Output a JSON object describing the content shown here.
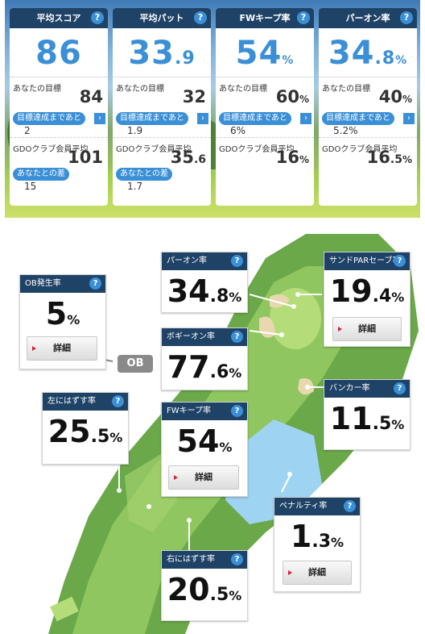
{
  "summary": {
    "cards": [
      {
        "title": "平均スコア",
        "value": "86",
        "dec": "",
        "unit": "",
        "goal_label": "あなたの目標",
        "goal": "84",
        "goal_dec": "",
        "goal_unit": "",
        "to_goal_label": "目標達成まであと",
        "to_goal": "2",
        "avg_label": "GDOクラブ会員平均",
        "avg": "101",
        "avg_dec": "",
        "avg_unit": "",
        "diff_label": "あなたとの差",
        "diff": "15"
      },
      {
        "title": "平均パット",
        "value": "33",
        "dec": ".9",
        "unit": "",
        "goal_label": "あなたの目標",
        "goal": "32",
        "goal_dec": "",
        "goal_unit": "",
        "to_goal_label": "目標達成まであと",
        "to_goal": "1.9",
        "avg_label": "GDOクラブ会員平均",
        "avg": "35",
        "avg_dec": ".6",
        "avg_unit": "",
        "diff_label": "あなたとの差",
        "diff": "1.7"
      },
      {
        "title": "FWキープ率",
        "value": "54",
        "dec": "",
        "unit": "%",
        "goal_label": "あなたの目標",
        "goal": "60",
        "goal_dec": "",
        "goal_unit": "%",
        "to_goal_label": "目標達成まであと",
        "to_goal": "6%",
        "avg_label": "GDOクラブ会員平均",
        "avg": "16",
        "avg_dec": "",
        "avg_unit": "%",
        "diff_label": "",
        "diff": ""
      },
      {
        "title": "パーオン率",
        "value": "34",
        "dec": ".8",
        "unit": "%",
        "goal_label": "あなたの目標",
        "goal": "40",
        "goal_dec": "",
        "goal_unit": "%",
        "to_goal_label": "目標達成まであと",
        "to_goal": "5.2%",
        "avg_label": "GDOクラブ会員平均",
        "avg": "16",
        "avg_dec": ".5",
        "avg_unit": "%",
        "diff_label": "",
        "diff": ""
      }
    ]
  },
  "stats": {
    "ob": {
      "title": "OB発生率",
      "value": "5",
      "dec": "",
      "unit": "%",
      "button": "詳細"
    },
    "ob_marker": "OB",
    "paron": {
      "title": "パーオン率",
      "value": "34",
      "dec": ".8",
      "unit": "%"
    },
    "sand": {
      "title": "サンドPARセーブ率",
      "value": "19",
      "dec": ".4",
      "unit": "%",
      "button": "詳細"
    },
    "bogey": {
      "title": "ボギーオン率",
      "value": "77",
      "dec": ".6",
      "unit": "%"
    },
    "left": {
      "title": "左にはずす率",
      "value": "25",
      "dec": ".5",
      "unit": "%"
    },
    "fw": {
      "title": "FWキープ率",
      "value": "54",
      "dec": "",
      "unit": "%",
      "button": "詳細"
    },
    "bunker": {
      "title": "バンカー率",
      "value": "11",
      "dec": ".5",
      "unit": "%"
    },
    "penalty": {
      "title": "ペナルティ率",
      "value": "1",
      "dec": ".3",
      "unit": "%",
      "button": "詳細"
    },
    "right": {
      "title": "右にはずす率",
      "value": "20",
      "dec": ".5",
      "unit": "%"
    }
  },
  "help_glyph": "?",
  "arrow_glyph": "›"
}
